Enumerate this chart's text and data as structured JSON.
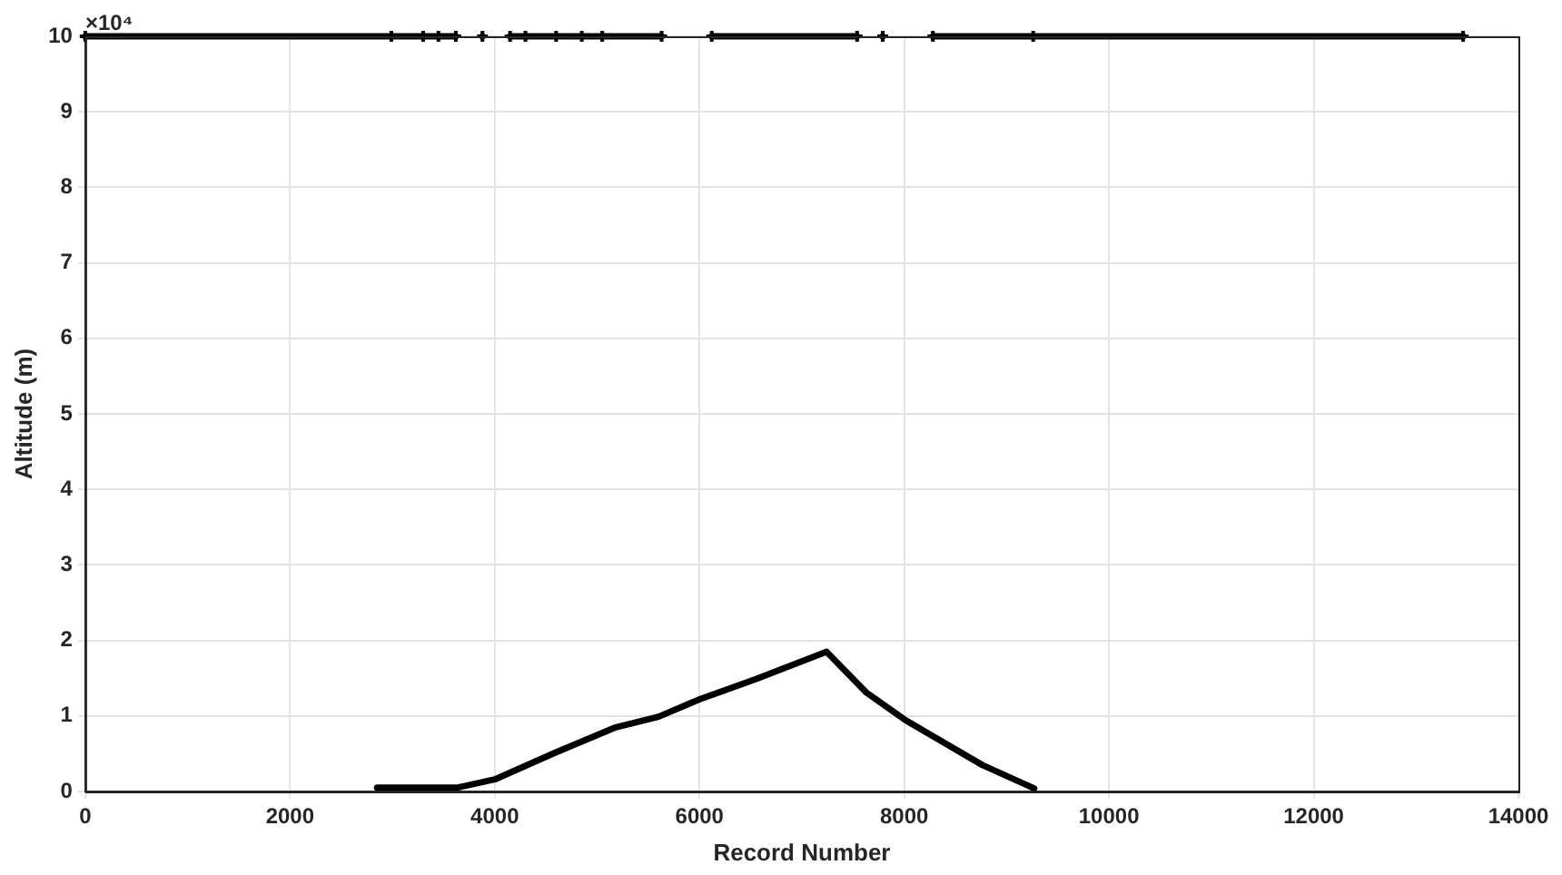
{
  "chart_data": {
    "type": "line",
    "xlabel": "Record Number",
    "ylabel": "Altitude (m)",
    "annotations": [
      "×10⁴"
    ],
    "xlim": [
      0,
      14000
    ],
    "xticks": [
      0,
      2000,
      4000,
      6000,
      8000,
      10000,
      12000,
      14000
    ],
    "ylim": [
      0,
      10
    ],
    "yticks": [
      0,
      1,
      2,
      3,
      4,
      5,
      6,
      7,
      8,
      9,
      10
    ],
    "grid": true,
    "legend": false,
    "series": [
      {
        "color": "#000000",
        "marker": "cross",
        "x": [
          0,
          2990,
          3300,
          3450,
          3620,
          3700,
          3880,
          3960,
          4150,
          4300,
          4600,
          4850,
          5050,
          5630,
          6000,
          6120,
          7540,
          7650,
          7790,
          8000,
          8280,
          9260,
          13460
        ],
        "values": [
          10,
          10,
          10,
          10,
          10,
          null,
          10,
          null,
          10,
          10,
          10,
          10,
          10,
          10,
          null,
          10,
          10,
          null,
          10,
          null,
          10,
          10,
          10
        ]
      },
      {
        "color": "#000000",
        "marker": "none",
        "x": [
          2850,
          3630,
          4000,
          4585,
          5182,
          5600,
          6000,
          6555,
          7242,
          7630,
          8006,
          8764,
          9270
        ],
        "values": [
          0.05,
          0.05,
          0.16,
          0.51,
          0.85,
          0.99,
          1.22,
          1.49,
          1.85,
          1.31,
          0.95,
          0.35,
          0.04
        ]
      }
    ]
  }
}
